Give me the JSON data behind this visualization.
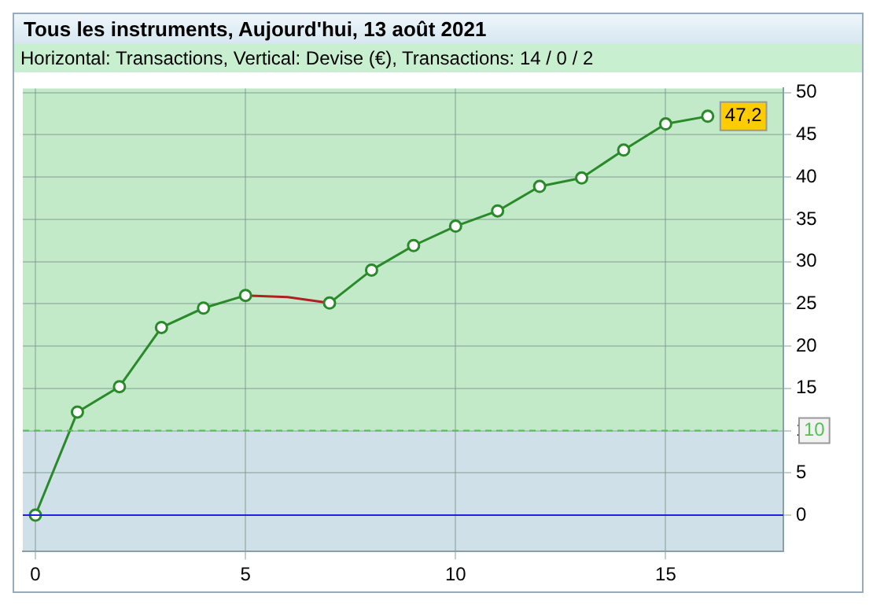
{
  "chart_data": {
    "type": "line",
    "title": "Tous les instruments, Aujourd'hui, 13 août 2021",
    "subtitle": "Horizontal: Transactions, Vertical: Devise (€), Transactions: 14 / 0 / 2",
    "x": [
      0,
      1,
      2,
      3,
      4,
      5,
      6,
      7,
      8,
      9,
      10,
      11,
      12,
      13,
      14,
      15,
      16
    ],
    "series": [
      {
        "color": "#2a8a2a",
        "marker": "circle",
        "values": [
          0,
          12.2,
          15.2,
          22.2,
          24.5,
          26.0,
          null,
          25.1,
          29.0,
          31.9,
          34.2,
          36.0,
          38.9,
          39.9,
          43.2,
          46.3,
          47.2
        ]
      },
      {
        "color": "#b02020",
        "marker": "none",
        "values": [
          null,
          null,
          null,
          null,
          null,
          26.0,
          25.8,
          25.1,
          null,
          null,
          null,
          null,
          null,
          null,
          null,
          null,
          null
        ]
      }
    ],
    "xlim": [
      -0.3,
      17.8
    ],
    "ylim": [
      -4.3,
      50.5
    ],
    "xticks": [
      0,
      5,
      10,
      15
    ],
    "yticks": [
      0,
      5,
      10,
      15,
      20,
      25,
      30,
      35,
      40,
      45,
      50
    ],
    "grid": true,
    "legend": false,
    "line_style": "solid",
    "bands": [
      {
        "axis": "y",
        "from": -4.3,
        "to": 10,
        "color": "#d0e0e8"
      },
      {
        "axis": "y",
        "from": 10,
        "to": 50.5,
        "color": "#c2eac9"
      }
    ],
    "ref_lines": [
      {
        "axis": "y",
        "value": 10,
        "label": "10",
        "color": "#55c055",
        "line_style": "dashed"
      },
      {
        "axis": "y",
        "value": 0,
        "color": "#2020e0",
        "line_style": "solid"
      }
    ],
    "annotations": [
      {
        "text": "47,2",
        "x": 16,
        "y": 47.2
      }
    ]
  }
}
